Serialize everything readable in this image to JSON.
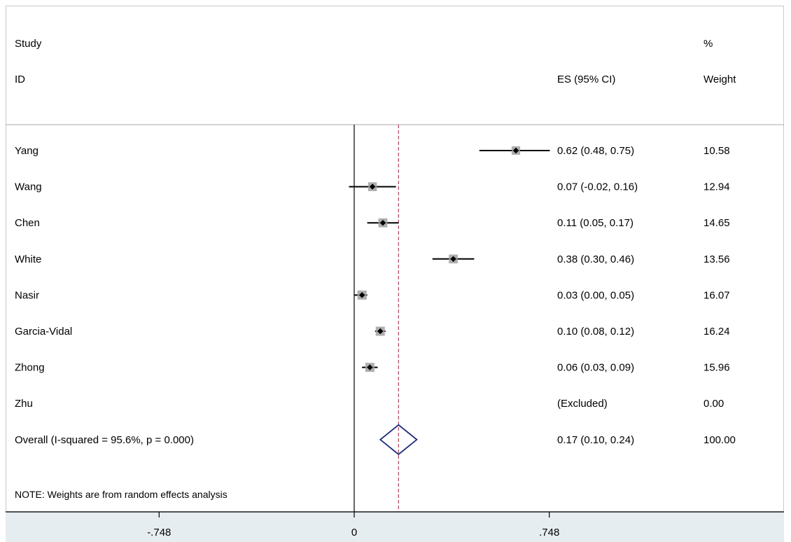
{
  "colors": {
    "background": "#ffffff",
    "axis_band": "#e5edf1",
    "frame": "#c8c8c8",
    "ci_line": "#000000",
    "box_fill": "#a0a0a0",
    "point": "#000000",
    "diamond": "#1a2a7a",
    "null_line": "#000000",
    "overall_line": "#b0445a"
  },
  "chart_data": {
    "type": "forest",
    "headers": {
      "study_line1": "Study",
      "study_line2": "ID",
      "es": "ES (95% CI)",
      "weight_line1": "%",
      "weight_line2": "Weight"
    },
    "studies": [
      {
        "id": "Yang",
        "es": 0.62,
        "lo": 0.48,
        "hi": 0.75,
        "es_text": "0.62 (0.48, 0.75)",
        "weight": 10.58,
        "weight_text": "10.58"
      },
      {
        "id": "Wang",
        "es": 0.07,
        "lo": -0.02,
        "hi": 0.16,
        "es_text": "0.07 (-0.02, 0.16)",
        "weight": 12.94,
        "weight_text": "12.94"
      },
      {
        "id": "Chen",
        "es": 0.11,
        "lo": 0.05,
        "hi": 0.17,
        "es_text": "0.11 (0.05, 0.17)",
        "weight": 14.65,
        "weight_text": "14.65"
      },
      {
        "id": "White",
        "es": 0.38,
        "lo": 0.3,
        "hi": 0.46,
        "es_text": "0.38 (0.30, 0.46)",
        "weight": 13.56,
        "weight_text": "13.56"
      },
      {
        "id": "Nasir",
        "es": 0.03,
        "lo": 0.0,
        "hi": 0.05,
        "es_text": "0.03 (0.00, 0.05)",
        "weight": 16.07,
        "weight_text": "16.07"
      },
      {
        "id": "Garcia-Vidal",
        "es": 0.1,
        "lo": 0.08,
        "hi": 0.12,
        "es_text": "0.10 (0.08, 0.12)",
        "weight": 16.24,
        "weight_text": "16.24"
      },
      {
        "id": "Zhong",
        "es": 0.06,
        "lo": 0.03,
        "hi": 0.09,
        "es_text": "0.06 (0.03, 0.09)",
        "weight": 15.96,
        "weight_text": "15.96"
      },
      {
        "id": "Zhu",
        "es": null,
        "lo": null,
        "hi": null,
        "es_text": "(Excluded)",
        "weight": 0.0,
        "weight_text": "0.00"
      }
    ],
    "overall": {
      "label": "Overall  (I-squared = 95.6%, p = 0.000)",
      "es": 0.17,
      "lo": 0.1,
      "hi": 0.24,
      "es_text": "0.17 (0.10, 0.24)",
      "weight_text": "100.00"
    },
    "note": "NOTE: Weights are from random effects analysis",
    "x_ticks": [
      {
        "value": -0.748,
        "label": "-.748"
      },
      {
        "value": 0,
        "label": "0"
      },
      {
        "value": 0.748,
        "label": ".748"
      }
    ],
    "null_value": 0,
    "xlim": [
      -0.748,
      0.748
    ]
  }
}
